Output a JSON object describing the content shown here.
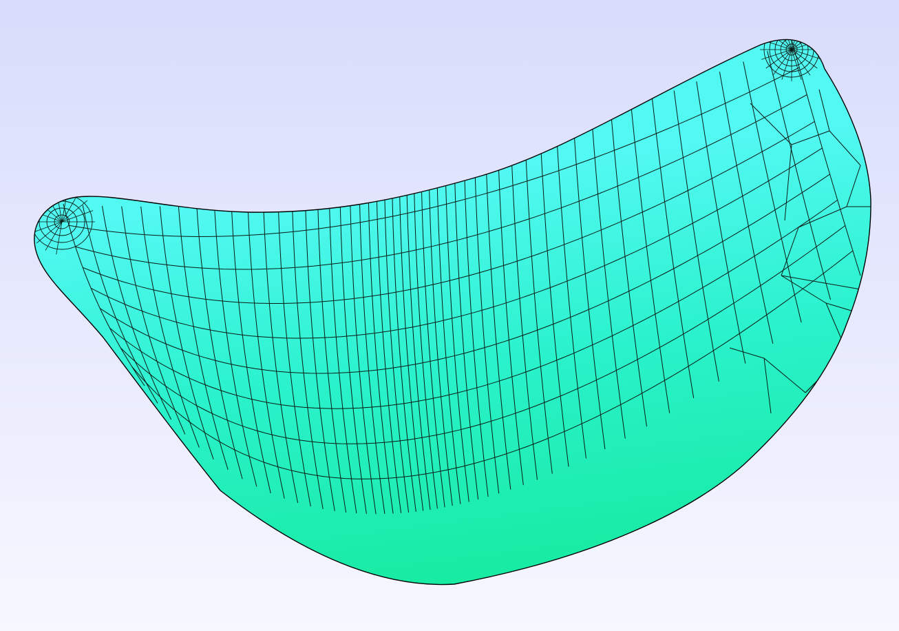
{
  "viewport": {
    "background_top": "#d8dcfb",
    "background_bottom": "#f6f7ff"
  },
  "mesh": {
    "model": "blade",
    "element_type": "quadrilateral",
    "fill_light": "#52f8f2",
    "fill_base": "#2af2cc",
    "fill_dark": "#16ea9e",
    "edge_color": "#0a1a14",
    "outline_color": "#000000",
    "radial_lines": 50,
    "stream_lines": 8,
    "tip_refinement_right": true,
    "tip_refinement_left": true
  }
}
